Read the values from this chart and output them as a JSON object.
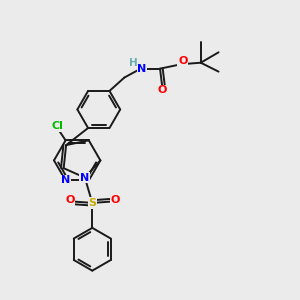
{
  "background_color": "#ebebeb",
  "bond_color": "#1a1a1a",
  "atom_colors": {
    "N": "#0000ff",
    "O": "#ff0000",
    "S": "#ccaa00",
    "Cl": "#00bb00",
    "H": "#6aafb0",
    "C": "#1a1a1a"
  },
  "figsize": [
    3.0,
    3.0
  ],
  "dpi": 100,
  "xlim": [
    0,
    10
  ],
  "ylim": [
    0,
    10
  ]
}
